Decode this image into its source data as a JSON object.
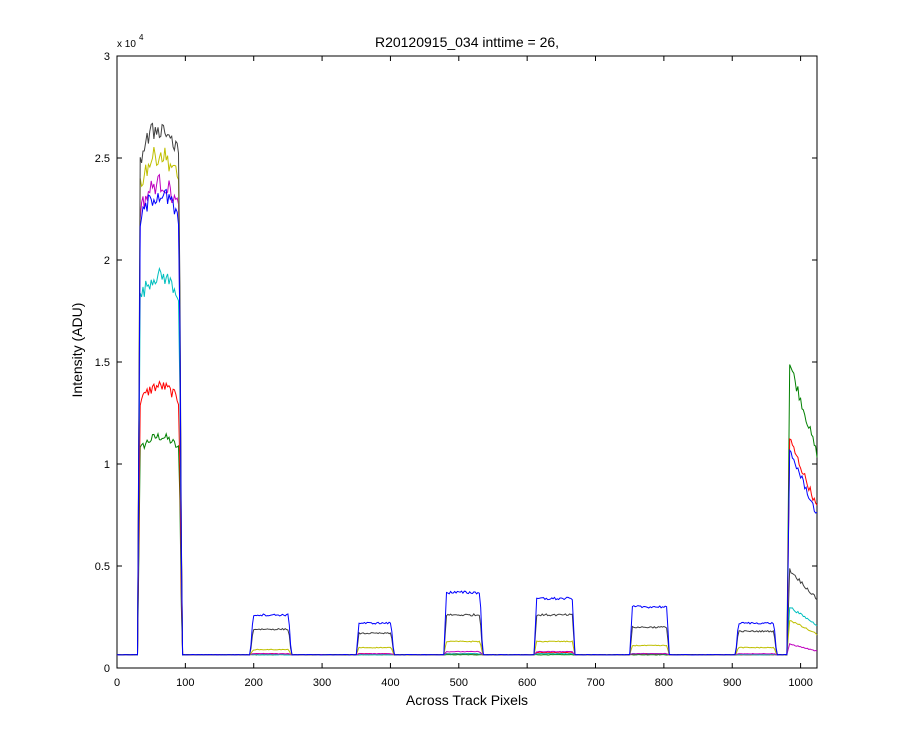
{
  "chart_data": {
    "type": "line",
    "title": "R20120915_034 inttime = 26,",
    "xlabel": "Across Track Pixels",
    "ylabel": "Intensity (ADU)",
    "y_exponent_label": "x 10",
    "y_exponent": "4",
    "xlim": [
      0,
      1024
    ],
    "ylim": [
      0,
      3
    ],
    "xticks": [
      0,
      100,
      200,
      300,
      400,
      500,
      600,
      700,
      800,
      900,
      1000
    ],
    "yticks": [
      0,
      0.5,
      1,
      1.5,
      2,
      2.5,
      3
    ],
    "ytick_labels": [
      "0",
      "0.5",
      "1",
      "1.5",
      "2",
      "2.5",
      "3"
    ],
    "grid": false,
    "legend": "none",
    "baseline": 0.065,
    "segments": [
      [
        30,
        95
      ],
      [
        195,
        255
      ],
      [
        350,
        405
      ],
      [
        478,
        535
      ],
      [
        610,
        670
      ],
      [
        750,
        808
      ],
      [
        905,
        965
      ],
      [
        980,
        1024
      ]
    ],
    "series": [
      {
        "color": "#0000ff",
        "levels": [
          2.15,
          0.26,
          0.22,
          0.37,
          0.34,
          0.3,
          0.22,
          1.0
        ]
      },
      {
        "color": "#404040",
        "levels": [
          2.45,
          0.19,
          0.17,
          0.26,
          0.26,
          0.2,
          0.18,
          0.45
        ]
      },
      {
        "color": "#bfbf00",
        "levels": [
          2.33,
          0.09,
          0.1,
          0.13,
          0.13,
          0.11,
          0.1,
          0.22
        ]
      },
      {
        "color": "#bf00bf",
        "levels": [
          2.2,
          0.07,
          0.07,
          0.08,
          0.08,
          0.07,
          0.07,
          0.11
        ]
      },
      {
        "color": "#00bfbf",
        "levels": [
          1.78,
          0.065,
          0.065,
          0.07,
          0.07,
          0.07,
          0.065,
          0.28
        ]
      },
      {
        "color": "#ff0000",
        "levels": [
          1.28,
          0.07,
          0.07,
          0.07,
          0.075,
          0.07,
          0.065,
          1.05
        ]
      },
      {
        "color": "#008000",
        "levels": [
          1.05,
          0.065,
          0.065,
          0.065,
          0.065,
          0.065,
          0.065,
          1.4
        ]
      }
    ]
  }
}
